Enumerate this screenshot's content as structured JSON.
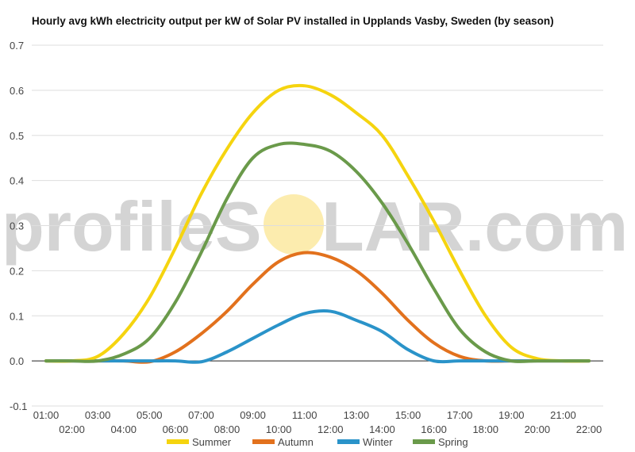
{
  "title": "Hourly avg kWh electricity output per kW of Solar PV installed in Upplands Vasby, Sweden (by season)",
  "watermark": {
    "left": "profileS",
    "right": "LAR.com",
    "sun_color": "#fbe9a0"
  },
  "chart_data": {
    "type": "line",
    "title": "Hourly avg kWh electricity output per kW of Solar PV installed in Upplands Vasby, Sweden (by season)",
    "xlabel": "",
    "ylabel": "",
    "ylim": [
      -0.1,
      0.7
    ],
    "yticks": [
      "-0.1",
      "0.0",
      "0.1",
      "0.2",
      "0.3",
      "0.4",
      "0.5",
      "0.6",
      "0.7"
    ],
    "grid": true,
    "legend_position": "bottom",
    "categories": [
      "01:00",
      "02:00",
      "03:00",
      "04:00",
      "05:00",
      "06:00",
      "07:00",
      "08:00",
      "09:00",
      "10:00",
      "11:00",
      "12:00",
      "13:00",
      "14:00",
      "15:00",
      "16:00",
      "17:00",
      "18:00",
      "19:00",
      "20:00",
      "21:00",
      "22:00"
    ],
    "series": [
      {
        "name": "Summer",
        "color": "#f5d40f",
        "values": [
          0,
          0,
          0.01,
          0.06,
          0.14,
          0.25,
          0.37,
          0.47,
          0.55,
          0.6,
          0.61,
          0.59,
          0.55,
          0.5,
          0.41,
          0.31,
          0.2,
          0.1,
          0.03,
          0.005,
          0,
          0
        ]
      },
      {
        "name": "Autumn",
        "color": "#e2711d",
        "values": [
          0,
          0,
          0,
          0,
          -0.002,
          0.02,
          0.06,
          0.11,
          0.17,
          0.22,
          0.24,
          0.23,
          0.2,
          0.15,
          0.09,
          0.04,
          0.01,
          0,
          0,
          0,
          0,
          0
        ]
      },
      {
        "name": "Winter",
        "color": "#2a93c9",
        "values": [
          0,
          0,
          0,
          0,
          0,
          0,
          -0.002,
          0.02,
          0.05,
          0.08,
          0.105,
          0.11,
          0.09,
          0.065,
          0.025,
          0,
          0,
          0,
          0,
          0,
          0,
          0
        ]
      },
      {
        "name": "Spring",
        "color": "#6a9a4a",
        "values": [
          0,
          0,
          0,
          0.015,
          0.05,
          0.13,
          0.24,
          0.36,
          0.45,
          0.48,
          0.48,
          0.465,
          0.42,
          0.35,
          0.26,
          0.16,
          0.07,
          0.02,
          0,
          0,
          0,
          0
        ]
      }
    ]
  }
}
